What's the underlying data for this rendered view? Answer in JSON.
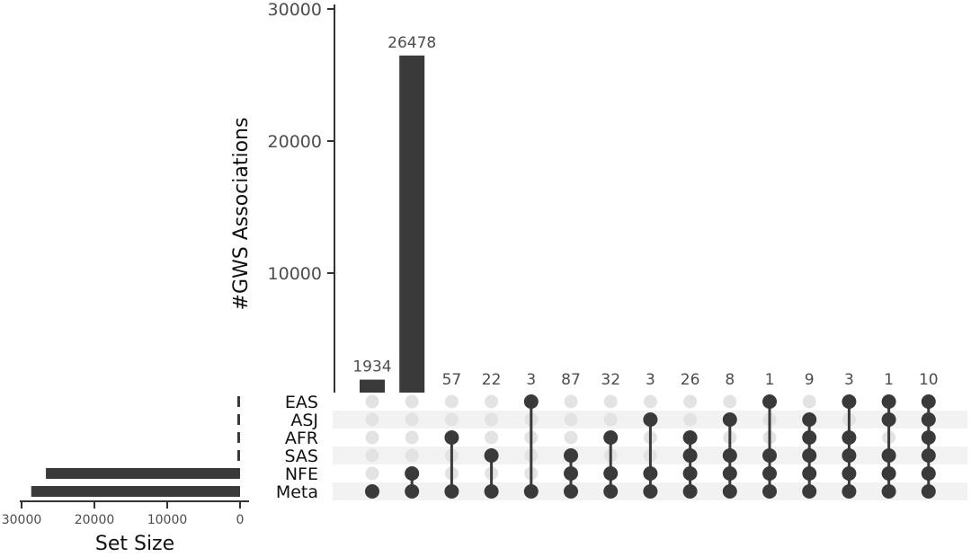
{
  "chart_data": {
    "type": "bar",
    "subtype": "upset",
    "ylabel": "#GWS Associations",
    "ylim": [
      0,
      30000
    ],
    "yticks": [
      "10000",
      "20000",
      "30000"
    ],
    "sets": [
      "EAS",
      "ASJ",
      "AFR",
      "SAS",
      "NFE",
      "Meta"
    ],
    "set_size_label": "Set Size",
    "set_size_ticks": [
      "30000",
      "20000",
      "10000",
      "0"
    ],
    "set_size_xlim": [
      30000,
      0
    ],
    "set_sizes": [
      18,
      31,
      137,
      167,
      26658,
      28674
    ],
    "intersections": [
      {
        "sets": [
          "Meta"
        ],
        "value": 1934,
        "label": "1934"
      },
      {
        "sets": [
          "NFE",
          "Meta"
        ],
        "value": 26478,
        "label": "26478"
      },
      {
        "sets": [
          "AFR",
          "Meta"
        ],
        "value": 57,
        "label": "57"
      },
      {
        "sets": [
          "SAS",
          "Meta"
        ],
        "value": 22,
        "label": "22"
      },
      {
        "sets": [
          "EAS",
          "Meta"
        ],
        "value": 3,
        "label": "3"
      },
      {
        "sets": [
          "SAS",
          "NFE",
          "Meta"
        ],
        "value": 87,
        "label": "87"
      },
      {
        "sets": [
          "AFR",
          "NFE",
          "Meta"
        ],
        "value": 32,
        "label": "32"
      },
      {
        "sets": [
          "ASJ",
          "NFE",
          "Meta"
        ],
        "value": 3,
        "label": "3"
      },
      {
        "sets": [
          "AFR",
          "SAS",
          "NFE",
          "Meta"
        ],
        "value": 26,
        "label": "26"
      },
      {
        "sets": [
          "ASJ",
          "SAS",
          "NFE",
          "Meta"
        ],
        "value": 8,
        "label": "8"
      },
      {
        "sets": [
          "EAS",
          "SAS",
          "NFE",
          "Meta"
        ],
        "value": 1,
        "label": "1"
      },
      {
        "sets": [
          "ASJ",
          "AFR",
          "SAS",
          "NFE",
          "Meta"
        ],
        "value": 9,
        "label": "9"
      },
      {
        "sets": [
          "EAS",
          "AFR",
          "SAS",
          "NFE",
          "Meta"
        ],
        "value": 3,
        "label": "3"
      },
      {
        "sets": [
          "EAS",
          "ASJ",
          "SAS",
          "NFE",
          "Meta"
        ],
        "value": 1,
        "label": "1"
      },
      {
        "sets": [
          "EAS",
          "ASJ",
          "AFR",
          "SAS",
          "NFE",
          "Meta"
        ],
        "value": 10,
        "label": "10"
      }
    ],
    "colors": {
      "bar": "#3a3a3a",
      "inactive_dot": "#e3e3e3",
      "stripe": "#f2f2f2",
      "text": "#4d4d4d"
    }
  }
}
